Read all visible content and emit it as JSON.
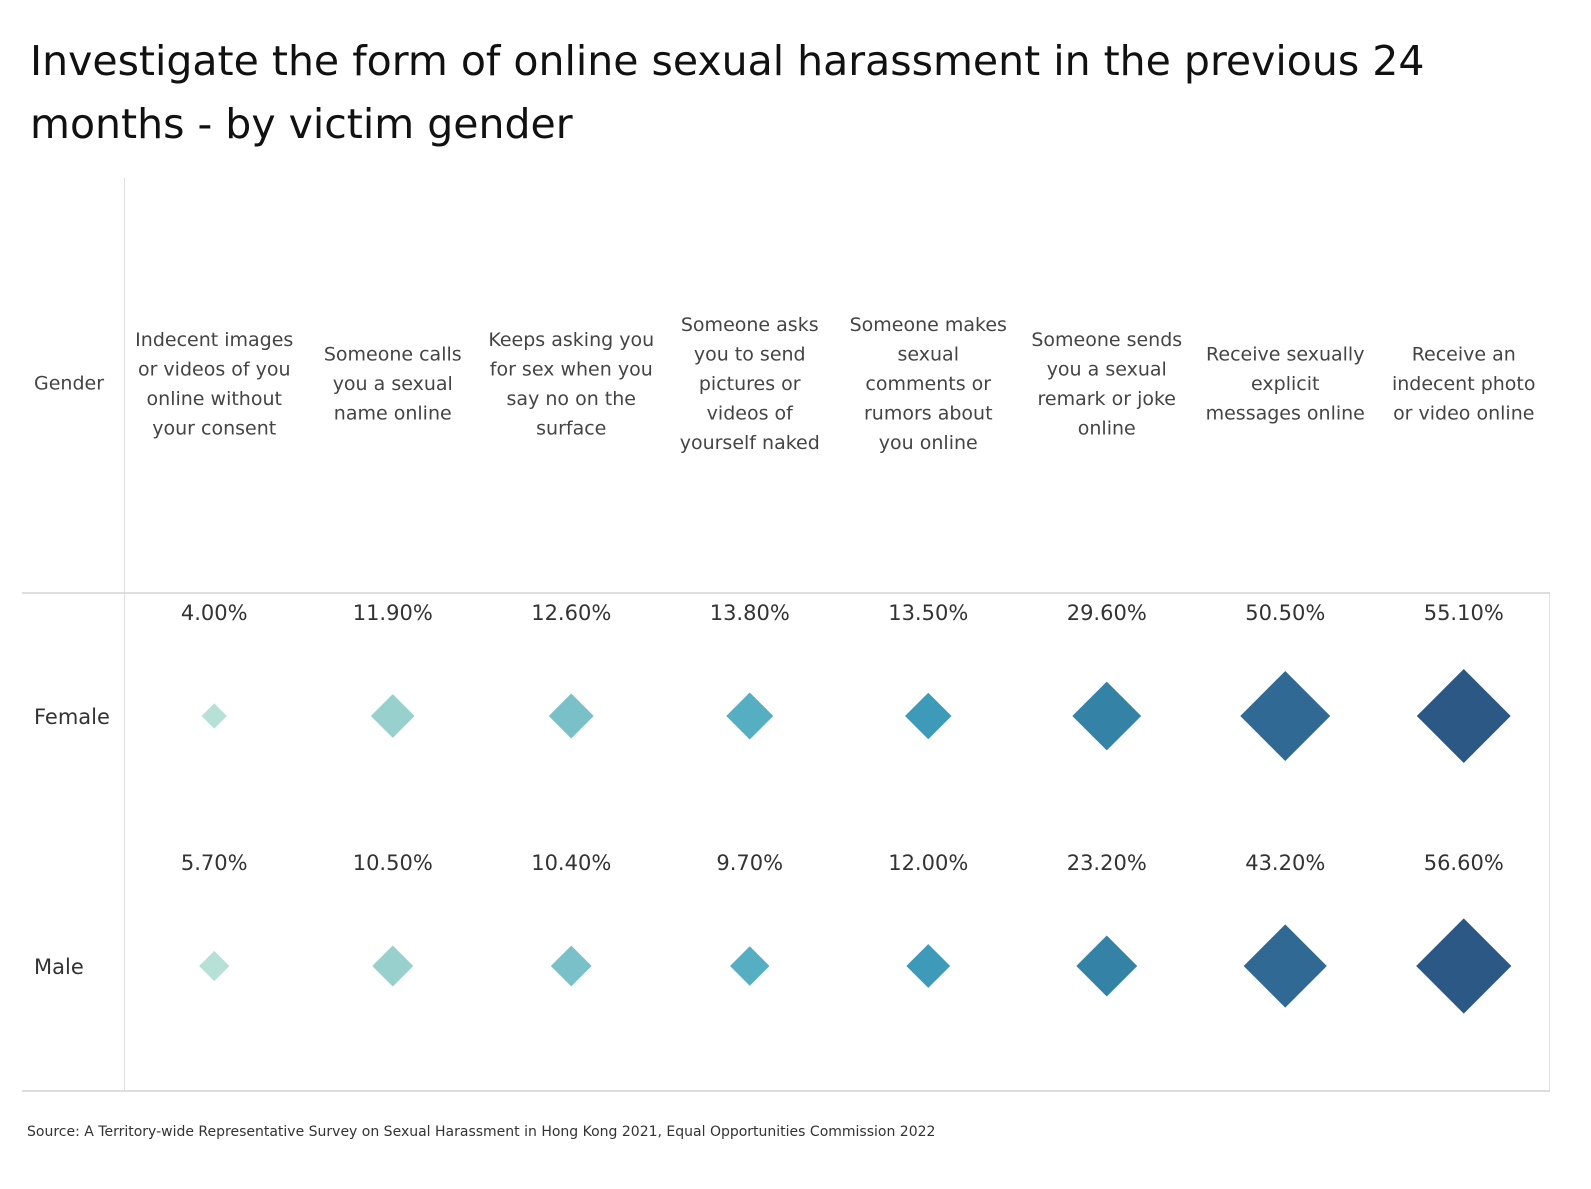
{
  "title": "Investigate the form of online sexual harassment in the previous 24 months - by victim gender",
  "source": "Source: A Territory-wide Representative Survey on Sexual Harassment in Hong Kong 2021, Equal Opportunities Commission 2022",
  "chart_data": {
    "type": "table",
    "row_header": "Gender",
    "categories": [
      "Indecent images or videos of you online without your consent",
      "Someone calls you a sexual name online",
      "Keeps asking you for sex when you say no on the surface",
      "Someone asks you to send pictures or videos of yourself naked",
      "Someone makes sexual comments or rumors about you online",
      "Someone sends you a sexual remark or joke online",
      "Receive sexually explicit messages online",
      "Receive an indecent photo or video online"
    ],
    "category_lines": [
      [
        "Indecent images",
        "or videos of you",
        "online without",
        "your consent"
      ],
      [
        "Someone calls",
        "you a sexual",
        "name online"
      ],
      [
        "Keeps asking you",
        "for sex when you",
        "say no on the",
        "surface"
      ],
      [
        "Someone asks",
        "you to send",
        "pictures or",
        "videos of",
        "yourself naked"
      ],
      [
        "Someone makes",
        "sexual",
        "comments or",
        "rumors about",
        "you online"
      ],
      [
        "Someone sends",
        "you a sexual",
        "remark or joke",
        "online"
      ],
      [
        "Receive sexually",
        "explicit",
        "messages online"
      ],
      [
        "Receive an",
        "indecent photo",
        "or video online"
      ]
    ],
    "series": [
      {
        "name": "Female",
        "values": [
          4.0,
          11.9,
          12.6,
          13.8,
          13.5,
          29.6,
          50.5,
          55.1
        ],
        "labels": [
          "4.00%",
          "11.90%",
          "12.60%",
          "13.80%",
          "13.50%",
          "29.60%",
          "50.50%",
          "55.10%"
        ]
      },
      {
        "name": "Male",
        "values": [
          5.7,
          10.5,
          10.4,
          9.7,
          12.0,
          23.2,
          43.2,
          56.6
        ],
        "labels": [
          "5.70%",
          "10.50%",
          "10.40%",
          "9.70%",
          "12.00%",
          "23.20%",
          "43.20%",
          "56.60%"
        ]
      }
    ],
    "marker": "diamond",
    "colors": [
      "#b7e0d6",
      "#97d0cd",
      "#7ac0c8",
      "#56aec2",
      "#3d9ab9",
      "#3483a7",
      "#2f6994",
      "#2c5885"
    ]
  }
}
